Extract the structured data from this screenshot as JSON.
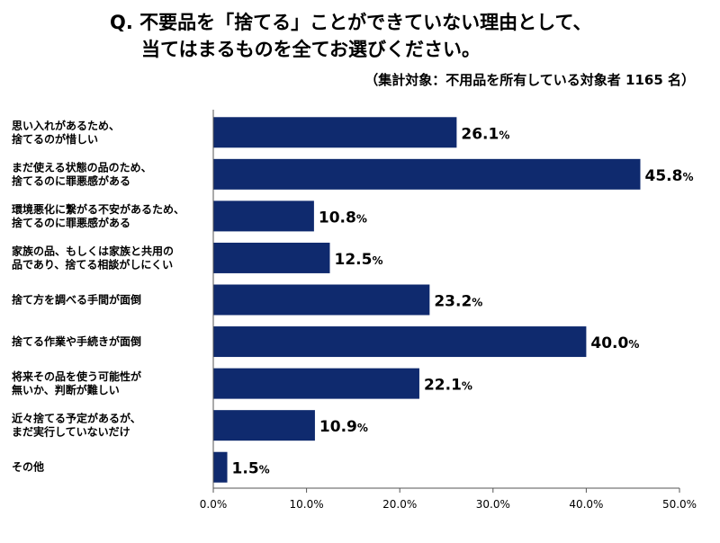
{
  "title_line1": "Q. 不要品を「捨てる」ことができていない理由として、",
  "title_line2": "当てはまるものを全てお選びください。",
  "subtitle": "（集計対象：不用品を所有している対象者 1165 名）",
  "colors": {
    "bar": "#0f2a6e",
    "axis": "#555555"
  },
  "chart_data": {
    "type": "bar",
    "orientation": "horizontal",
    "categories": [
      [
        "思い入れがあるため、",
        "捨てるのが惜しい"
      ],
      [
        "まだ使える状態の品のため、",
        "捨てるのに罪悪感がある"
      ],
      [
        "環境悪化に繋がる不安があるため、",
        "捨てるのに罪悪感がある"
      ],
      [
        "家族の品、もしくは家族と共用の",
        "品であり、捨てる相談がしにくい"
      ],
      [
        "捨て方を調べる手間が面倒"
      ],
      [
        "捨てる作業や手続きが面倒"
      ],
      [
        "将来その品を使う可能性が",
        "無いか、判断が難しい"
      ],
      [
        "近々捨てる予定があるが、",
        "まだ実行していないだけ"
      ],
      [
        "その他"
      ]
    ],
    "values": [
      26.1,
      45.8,
      10.8,
      12.5,
      23.2,
      40.0,
      22.1,
      10.9,
      1.5
    ],
    "value_labels": [
      "26.1",
      "45.8",
      "10.8",
      "12.5",
      "23.2",
      "40.0",
      "22.1",
      "10.9",
      "1.5"
    ],
    "value_suffix": "%",
    "xlim": [
      0,
      50
    ],
    "ticks": [
      "0.0%",
      "10.0%",
      "20.0%",
      "30.0%",
      "40.0%",
      "50.0%"
    ],
    "grid": false
  }
}
